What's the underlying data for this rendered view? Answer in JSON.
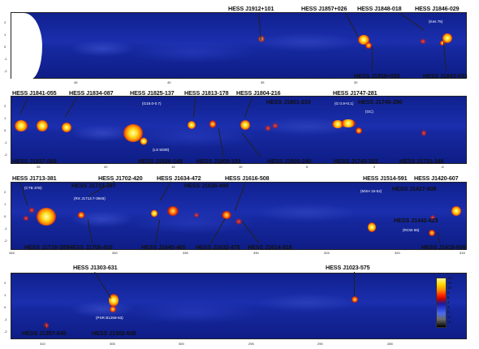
{
  "panels": [
    {
      "top_labels": [
        "HESS J1912+101",
        "HESS J1857+026",
        "HESS J1848-018",
        "HESS J1846-029"
      ],
      "bottom_labels": [
        "HESS J1858+020",
        "HESS J1843-033"
      ],
      "sub_labels": [
        "(Kes 75)"
      ],
      "x_ticks": [
        "45",
        "40",
        "35",
        "30"
      ]
    },
    {
      "top_labels": [
        "HESS J1841-055",
        "HESS J1834-087",
        "HESS J1825-137",
        "HESS J1813-178",
        "HESS J1804-216",
        "HESS J1801-233",
        "HESS J1747-281",
        "HESS J1745-290"
      ],
      "bottom_labels": [
        "HESS J1837-069",
        "HESS J1826-148",
        "HESS J1809-193",
        "HESS J1800-240",
        "HESS J1745-303",
        "HESS J1731-348"
      ],
      "sub_labels": [
        "(G18.0-0.7)",
        "(LS 5039)",
        "(G 0.9+0.1)",
        "(GC)"
      ],
      "x_ticks": [
        "25",
        "20",
        "15",
        "10",
        "5",
        "0",
        "-5"
      ]
    },
    {
      "top_labels": [
        "HESS J1713-381",
        "HESS J1713-397",
        "HESS J1702-420",
        "HESS J1634-472",
        "HESS J1626-490",
        "HESS J1616-508",
        "HESS J1514-591",
        "HESS J1427-608",
        "HESS J1420-607"
      ],
      "bottom_labels": [
        "HESS J1718-385",
        "HESS J1708-410",
        "HESS J1640-465",
        "HESS J1632-478",
        "HESS J1614-518",
        "HESS J1442-623",
        "HESS J1418-609"
      ],
      "sub_labels": [
        "(CTB 37B)",
        "(RX J1713.7-3946)",
        "(MSH 15-52)",
        "(RCW 86)"
      ],
      "x_ticks": [
        "345",
        "340",
        "335",
        "330",
        "325",
        "320",
        "315"
      ]
    },
    {
      "top_labels": [
        "HESS J1303-631",
        "HESS J1023-575"
      ],
      "bottom_labels": [
        "HESS J1357-645",
        "HESS J1302-638"
      ],
      "sub_labels": [
        "(PSR B1259-63)"
      ],
      "x_ticks": [
        "310",
        "305",
        "300",
        "295",
        "290",
        "285"
      ]
    }
  ],
  "y_ticks": [
    "2",
    "1",
    "0",
    "-1",
    "-2"
  ],
  "colorbar": {
    "ticks": [
      "14",
      "12",
      "10",
      "8",
      "6",
      "4",
      "2",
      "0",
      "-2",
      "-4"
    ],
    "colors": [
      "#fff8a0",
      "#ffd800",
      "#ff8c00",
      "#ff2a00",
      "#c80000",
      "#1a1aa0",
      "#2a40d8",
      "#4a6cf0",
      "#6a6a6a",
      "#000000"
    ]
  }
}
